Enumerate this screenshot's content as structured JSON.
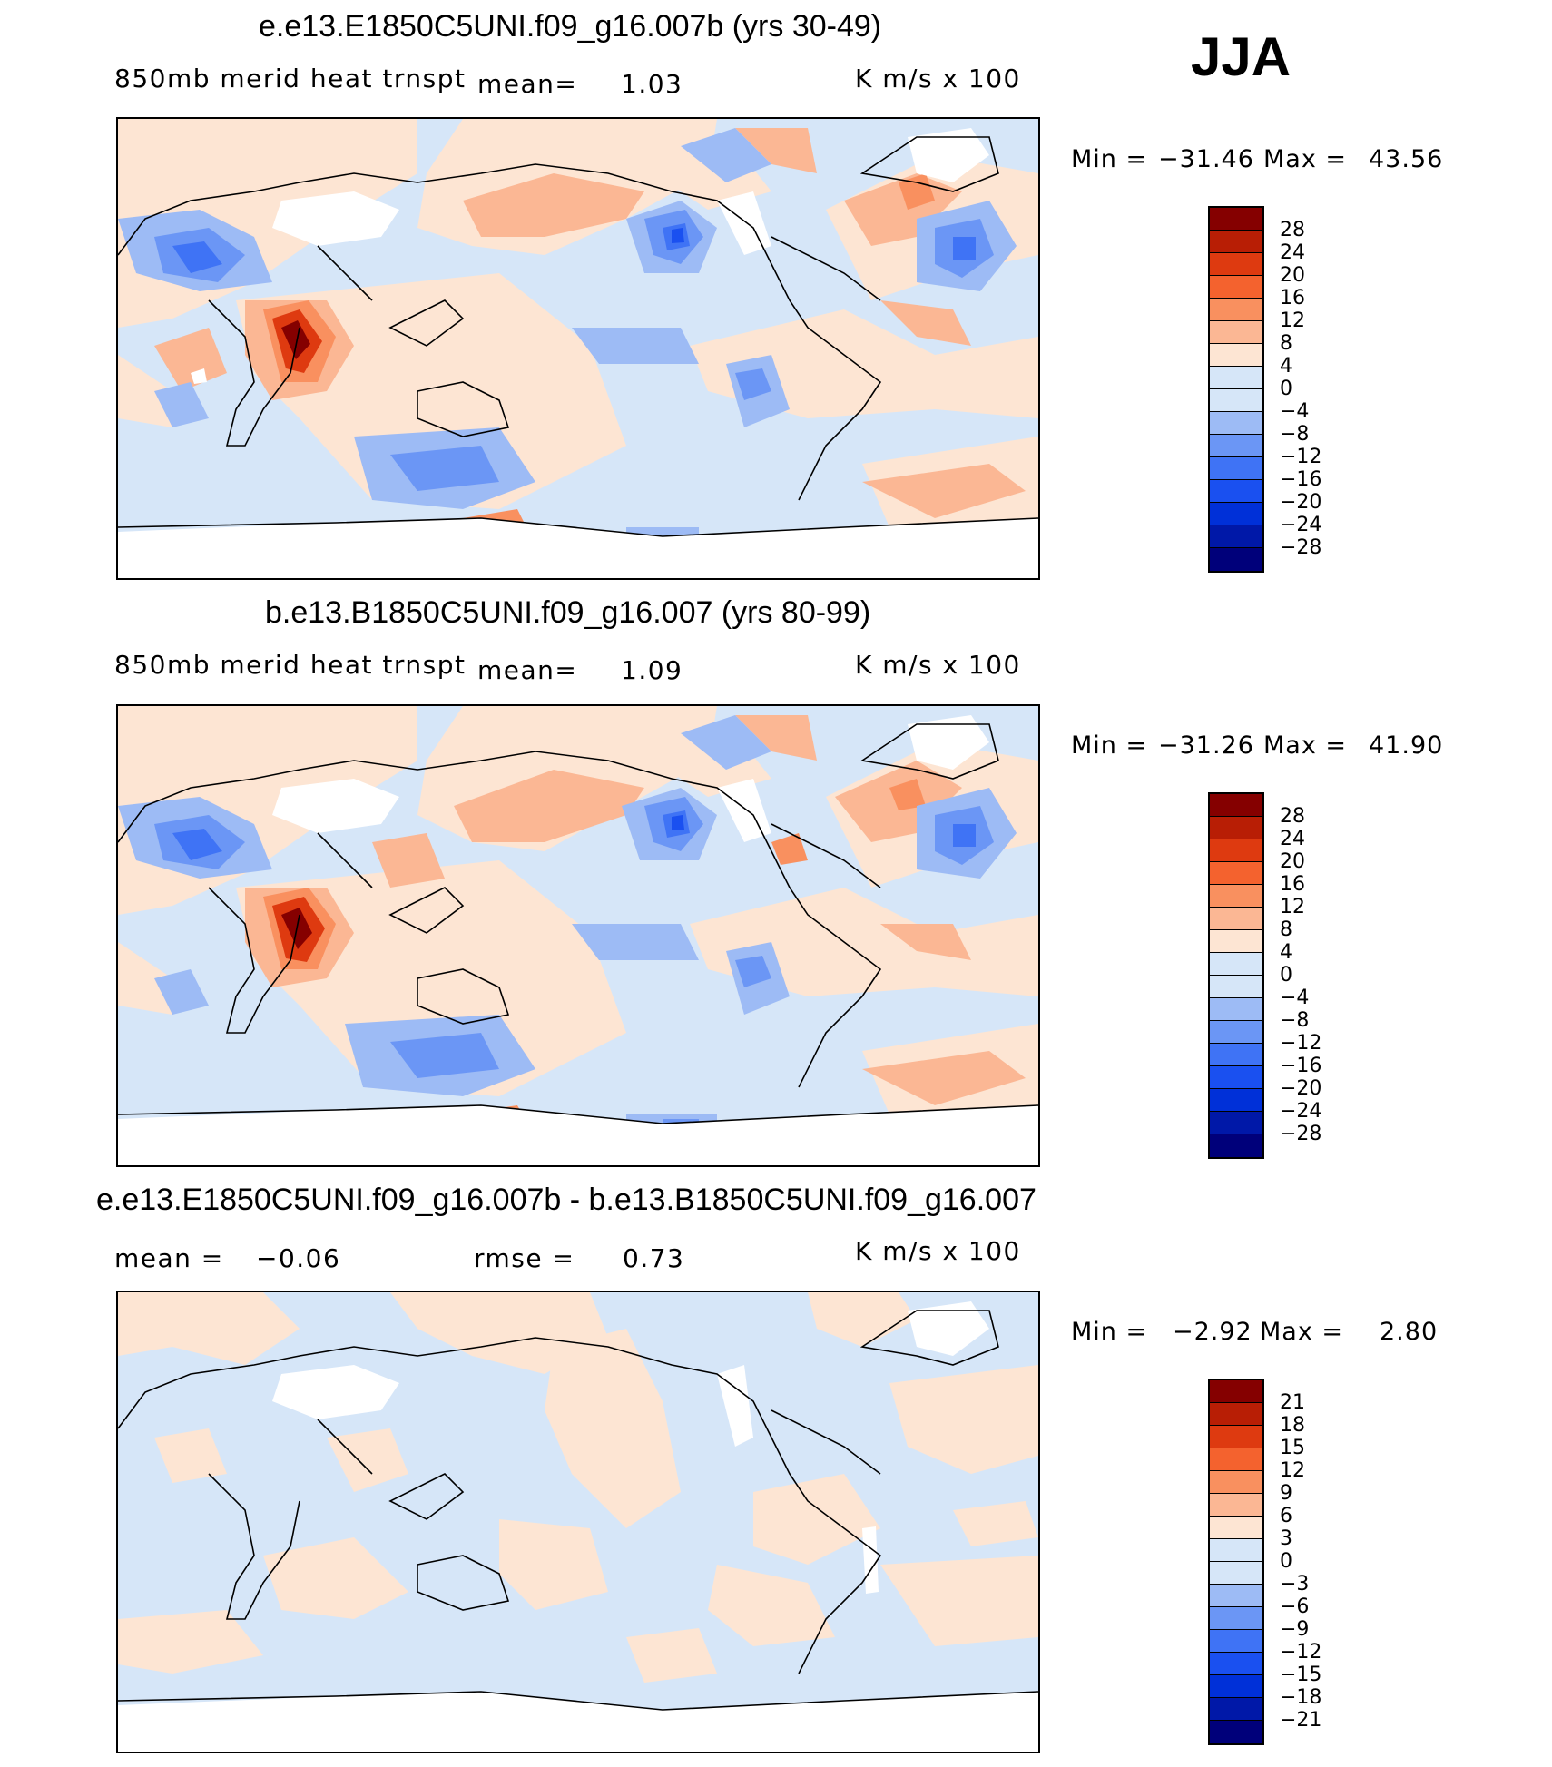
{
  "season": "JJA",
  "colors": {
    "scale": [
      "#00007a",
      "#0018a8",
      "#0030d8",
      "#1a50f0",
      "#3f73f5",
      "#6b96f5",
      "#9dbbf5",
      "#d6e6f8",
      "#fde5d3",
      "#fbb794",
      "#f9905f",
      "#f4622e",
      "#de3a10",
      "#b81e05",
      "#850000"
    ],
    "coast": "#000000",
    "ice": "#ffffff"
  },
  "panels": [
    {
      "title": "e.e13.E1850C5UNI.f09_g16.007b (yrs 30-49)",
      "variable": "850mb merid heat trnspt",
      "mean_label": "mean=",
      "mean_value": "1.03",
      "units": "K m/s x 100",
      "min_label": "Min =",
      "min_value": "−31.46",
      "max_label": "Max =",
      "max_value": "43.56",
      "levels": [
        "28",
        "24",
        "20",
        "16",
        "12",
        "8",
        "4",
        "0",
        "−4",
        "−8",
        "−12",
        "−16",
        "−20",
        "−24",
        "−28"
      ]
    },
    {
      "title": "b.e13.B1850C5UNI.f09_g16.007 (yrs 80-99)",
      "variable": "850mb merid heat trnspt",
      "mean_label": "mean=",
      "mean_value": "1.09",
      "units": "K m/s x 100",
      "min_label": "Min =",
      "min_value": "−31.26",
      "max_label": "Max =",
      "max_value": "41.90",
      "levels": [
        "28",
        "24",
        "20",
        "16",
        "12",
        "8",
        "4",
        "0",
        "−4",
        "−8",
        "−12",
        "−16",
        "−20",
        "−24",
        "−28"
      ]
    },
    {
      "title": "e.e13.E1850C5UNI.f09_g16.007b - b.e13.B1850C5UNI.f09_g16.007",
      "mean_label": "mean =",
      "mean_value": "−0.06",
      "rmse_label": "rmse =",
      "rmse_value": "0.73",
      "units": "K m/s x 100",
      "min_label": "Min =",
      "min_value": "−2.92",
      "max_label": "Max =",
      "max_value": "2.80",
      "levels": [
        "21",
        "18",
        "15",
        "12",
        "9",
        "6",
        "3",
        "0",
        "−3",
        "−6",
        "−9",
        "−12",
        "−15",
        "−18",
        "−21"
      ]
    }
  ]
}
